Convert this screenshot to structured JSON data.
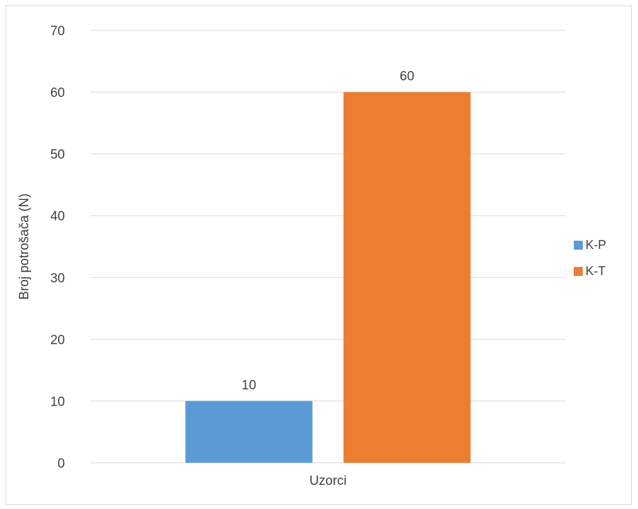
{
  "chart_data": {
    "type": "bar",
    "categories": [
      "Uzorci"
    ],
    "series": [
      {
        "name": "K-P",
        "values": [
          10
        ],
        "color": "#5B9BD5"
      },
      {
        "name": "K-T",
        "values": [
          60
        ],
        "color": "#ED7D31"
      }
    ],
    "ylabel": "Broj potrošača (N)",
    "xlabel": "",
    "ylim": [
      0,
      70
    ],
    "yticks": [
      0,
      10,
      20,
      30,
      40,
      50,
      60,
      70
    ],
    "grid": true,
    "legend_position": "right",
    "gridline_color": "#d9d9d9"
  }
}
